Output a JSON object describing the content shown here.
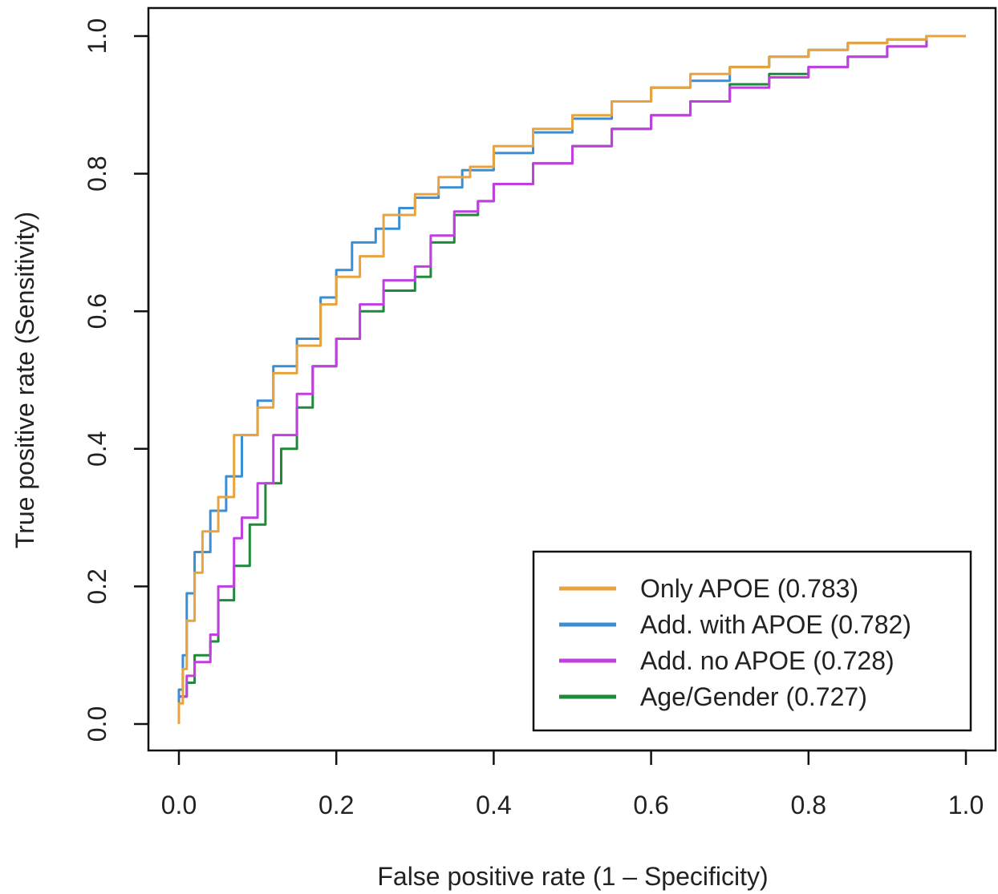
{
  "chart_data": {
    "type": "line",
    "title": "",
    "xlabel": "False positive rate (1 – Specificity)",
    "ylabel": "True positive rate (Sensitivity)",
    "xlim": [
      0,
      1
    ],
    "ylim": [
      0,
      1
    ],
    "x_ticks": [
      "0.0",
      "0.2",
      "0.4",
      "0.6",
      "0.8",
      "1.0"
    ],
    "y_ticks": [
      "0.0",
      "0.2",
      "0.4",
      "0.6",
      "0.8",
      "1.0"
    ],
    "grid": false,
    "legend_position": "bottom-right",
    "series": [
      {
        "name": "Only APOE (0.783)",
        "color": "#E8A33C",
        "points": [
          [
            0,
            0
          ],
          [
            0.005,
            0.03
          ],
          [
            0.01,
            0.08
          ],
          [
            0.02,
            0.15
          ],
          [
            0.03,
            0.22
          ],
          [
            0.05,
            0.28
          ],
          [
            0.07,
            0.33
          ],
          [
            0.1,
            0.42
          ],
          [
            0.12,
            0.46
          ],
          [
            0.15,
            0.51
          ],
          [
            0.18,
            0.55
          ],
          [
            0.2,
            0.61
          ],
          [
            0.23,
            0.65
          ],
          [
            0.26,
            0.68
          ],
          [
            0.3,
            0.74
          ],
          [
            0.33,
            0.77
          ],
          [
            0.37,
            0.795
          ],
          [
            0.4,
            0.81
          ],
          [
            0.45,
            0.84
          ],
          [
            0.5,
            0.865
          ],
          [
            0.55,
            0.885
          ],
          [
            0.6,
            0.905
          ],
          [
            0.65,
            0.925
          ],
          [
            0.7,
            0.945
          ],
          [
            0.75,
            0.955
          ],
          [
            0.8,
            0.97
          ],
          [
            0.85,
            0.98
          ],
          [
            0.9,
            0.99
          ],
          [
            0.95,
            0.995
          ],
          [
            1,
            1
          ]
        ]
      },
      {
        "name": "Add. with APOE (0.782)",
        "color": "#3A8FD4",
        "points": [
          [
            0,
            0
          ],
          [
            0.005,
            0.05
          ],
          [
            0.01,
            0.1
          ],
          [
            0.02,
            0.19
          ],
          [
            0.04,
            0.25
          ],
          [
            0.06,
            0.31
          ],
          [
            0.08,
            0.36
          ],
          [
            0.1,
            0.42
          ],
          [
            0.12,
            0.47
          ],
          [
            0.15,
            0.52
          ],
          [
            0.18,
            0.56
          ],
          [
            0.2,
            0.62
          ],
          [
            0.22,
            0.66
          ],
          [
            0.25,
            0.7
          ],
          [
            0.28,
            0.72
          ],
          [
            0.3,
            0.75
          ],
          [
            0.33,
            0.765
          ],
          [
            0.36,
            0.78
          ],
          [
            0.4,
            0.805
          ],
          [
            0.45,
            0.83
          ],
          [
            0.5,
            0.86
          ],
          [
            0.55,
            0.88
          ],
          [
            0.6,
            0.905
          ],
          [
            0.65,
            0.925
          ],
          [
            0.7,
            0.935
          ],
          [
            0.75,
            0.955
          ],
          [
            0.8,
            0.97
          ],
          [
            0.85,
            0.98
          ],
          [
            0.9,
            0.99
          ],
          [
            0.95,
            0.995
          ],
          [
            1,
            1
          ]
        ]
      },
      {
        "name": "Add. no APOE (0.728)",
        "color": "#C13FE0",
        "points": [
          [
            0,
            0
          ],
          [
            0.01,
            0.04
          ],
          [
            0.02,
            0.07
          ],
          [
            0.04,
            0.09
          ],
          [
            0.05,
            0.13
          ],
          [
            0.07,
            0.2
          ],
          [
            0.08,
            0.27
          ],
          [
            0.1,
            0.3
          ],
          [
            0.12,
            0.35
          ],
          [
            0.15,
            0.42
          ],
          [
            0.17,
            0.48
          ],
          [
            0.2,
            0.52
          ],
          [
            0.23,
            0.56
          ],
          [
            0.26,
            0.61
          ],
          [
            0.3,
            0.645
          ],
          [
            0.32,
            0.665
          ],
          [
            0.35,
            0.71
          ],
          [
            0.38,
            0.745
          ],
          [
            0.4,
            0.76
          ],
          [
            0.45,
            0.785
          ],
          [
            0.5,
            0.815
          ],
          [
            0.55,
            0.84
          ],
          [
            0.6,
            0.865
          ],
          [
            0.65,
            0.885
          ],
          [
            0.7,
            0.905
          ],
          [
            0.75,
            0.925
          ],
          [
            0.8,
            0.94
          ],
          [
            0.85,
            0.955
          ],
          [
            0.9,
            0.97
          ],
          [
            0.95,
            0.985
          ],
          [
            1,
            1
          ]
        ]
      },
      {
        "name": "Age/Gender (0.727)",
        "color": "#1E8A3A",
        "points": [
          [
            0,
            0
          ],
          [
            0.01,
            0.04
          ],
          [
            0.02,
            0.06
          ],
          [
            0.04,
            0.1
          ],
          [
            0.05,
            0.12
          ],
          [
            0.07,
            0.18
          ],
          [
            0.09,
            0.23
          ],
          [
            0.11,
            0.29
          ],
          [
            0.13,
            0.35
          ],
          [
            0.15,
            0.4
          ],
          [
            0.17,
            0.46
          ],
          [
            0.2,
            0.52
          ],
          [
            0.23,
            0.56
          ],
          [
            0.26,
            0.6
          ],
          [
            0.3,
            0.63
          ],
          [
            0.32,
            0.65
          ],
          [
            0.35,
            0.7
          ],
          [
            0.38,
            0.74
          ],
          [
            0.4,
            0.76
          ],
          [
            0.45,
            0.785
          ],
          [
            0.5,
            0.815
          ],
          [
            0.55,
            0.84
          ],
          [
            0.6,
            0.865
          ],
          [
            0.65,
            0.885
          ],
          [
            0.7,
            0.905
          ],
          [
            0.75,
            0.93
          ],
          [
            0.8,
            0.945
          ],
          [
            0.85,
            0.955
          ],
          [
            0.9,
            0.97
          ],
          [
            0.95,
            0.985
          ],
          [
            1,
            1
          ]
        ]
      }
    ]
  }
}
